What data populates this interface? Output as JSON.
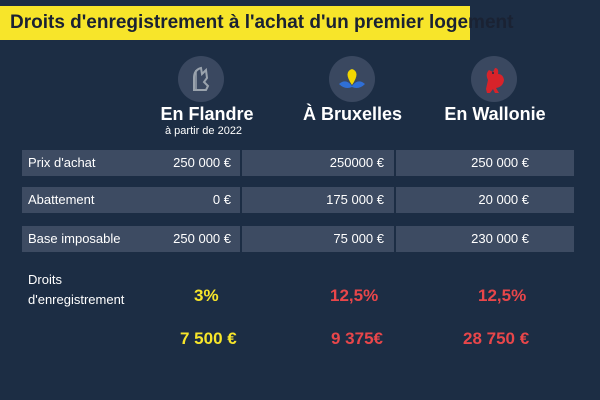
{
  "title": "Droits d'enregistrement à l'achat d'un premier logement",
  "columns": [
    {
      "name": "En Flandre",
      "sub": "à partir de 2022",
      "emblem": "flemish-lion-icon"
    },
    {
      "name": "À Bruxelles",
      "sub": "",
      "emblem": "brussels-iris-icon"
    },
    {
      "name": "En Wallonie",
      "sub": "",
      "emblem": "walloon-rooster-icon"
    }
  ],
  "rows": [
    {
      "label": "Prix d'achat",
      "values": [
        "250 000 €",
        "250000 €",
        "250 000 €"
      ]
    },
    {
      "label": "Abattement",
      "values": [
        "0 €",
        "175 000 €",
        "20 000 €"
      ]
    },
    {
      "label": "Base imposable",
      "values": [
        "250 000 €",
        "75 000 €",
        "230 000 €"
      ]
    }
  ],
  "rate_row": {
    "label_line1": "Droits",
    "label_line2": "d'enregistrement",
    "values": [
      "3%",
      "12,5%",
      "12,5%"
    ]
  },
  "totals": [
    "7 500 €",
    "9 375€",
    "28 750 €"
  ],
  "colors": {
    "banner": "#f7e52a",
    "background": "#1c2d44",
    "row": "#3d4b62",
    "flandre": "#f7e52a",
    "bruxelles_wallonie": "#e8464a"
  }
}
